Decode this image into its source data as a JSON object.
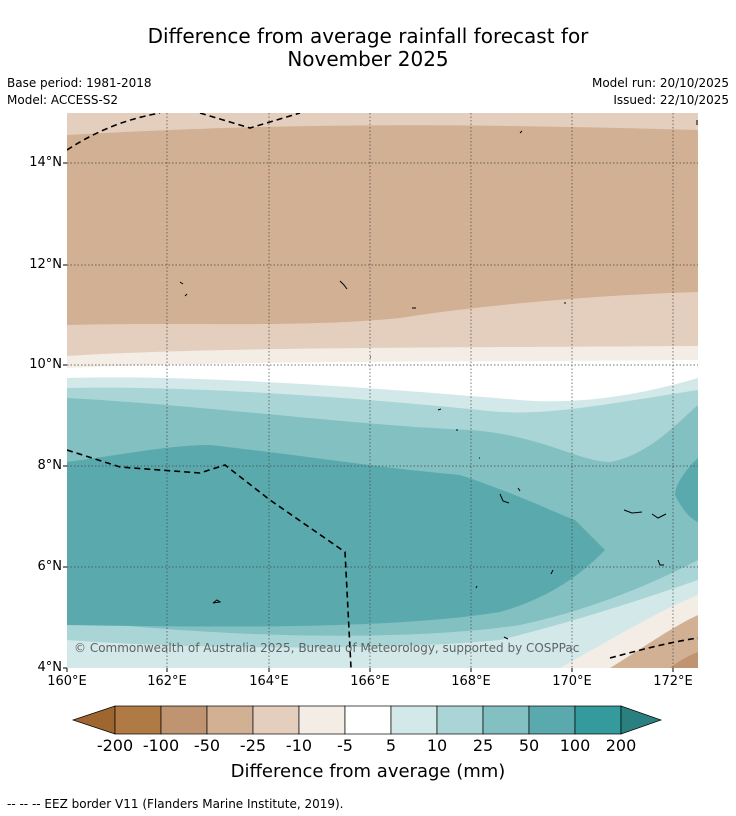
{
  "title": {
    "line1": "Difference from average rainfall forecast for",
    "line2": "November 2025"
  },
  "meta": {
    "base_period": "Base period: 1981-2018",
    "model": "Model: ACCESS-S2",
    "model_run": "Model run: 20/10/2025",
    "issued": "Issued: 22/10/2025"
  },
  "map": {
    "lat_labels": [
      "14°N",
      "12°N",
      "10°N",
      "8°N",
      "6°N",
      "4°N"
    ],
    "lon_labels": [
      "160°E",
      "162°E",
      "164°E",
      "166°E",
      "168°E",
      "170°E",
      "172°E"
    ],
    "copyright": "© Commonwealth of Australia 2025, Bureau of Meteorology, supported by COSPPac"
  },
  "colorbar": {
    "labels": [
      "-200",
      "-100",
      "-50",
      "-25",
      "-10",
      "-5",
      "5",
      "10",
      "25",
      "50",
      "100",
      "200"
    ],
    "colors": [
      "#a0662f",
      "#b07a45",
      "#c09470",
      "#d2b093",
      "#e4cfbe",
      "#f3ede6",
      "#ffffff",
      "#d3e9e9",
      "#aad5d6",
      "#82c0c1",
      "#5aaaad",
      "#359a9c",
      "#2a7f80"
    ],
    "title": "Difference from average (mm)"
  },
  "footnote": "--  --  -- EEZ border V11 (Flanders Marine Institute, 2019)."
}
